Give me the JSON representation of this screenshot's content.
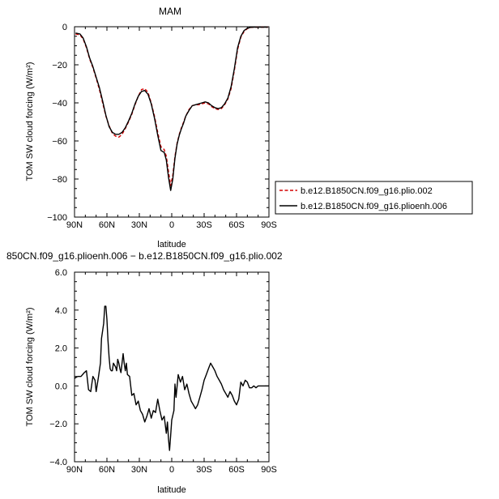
{
  "chart_data": [
    {
      "type": "line",
      "title": "MAM",
      "xlabel": "latitude",
      "ylabel": "TOM SW cloud forcing (W/m²)",
      "xlim": [
        90,
        -90
      ],
      "ylim": [
        -100,
        0
      ],
      "x_ticks": [
        90,
        60,
        30,
        0,
        -30,
        -60,
        -90
      ],
      "x_tick_labels": [
        "90N",
        "60N",
        "30N",
        "0",
        "30S",
        "60S",
        "90S"
      ],
      "y_ticks": [
        0,
        -20,
        -40,
        -60,
        -80,
        -100
      ],
      "y_tick_labels": [
        "0",
        "−20",
        "−40",
        "−60",
        "−80",
        "−100"
      ],
      "grid": false,
      "legend": "right",
      "series": [
        {
          "name": "b.e12.B1850CN.f09_g16.plio.002",
          "color": "#d40000",
          "dash": "dashed",
          "x": [
            89,
            85,
            82,
            79,
            76,
            73,
            70,
            67,
            64,
            61,
            58,
            55,
            52,
            49,
            46,
            43,
            40,
            37,
            34,
            31,
            28,
            25,
            22,
            19,
            16,
            13,
            10,
            7,
            5,
            3,
            1,
            -1,
            -3,
            -5,
            -7,
            -9,
            -11,
            -13,
            -16,
            -19,
            -22,
            -25,
            -28,
            -31,
            -34,
            -37,
            -40,
            -43,
            -46,
            -49,
            -52,
            -55,
            -58,
            -61,
            -64,
            -67,
            -70,
            -73,
            -76,
            -79,
            -82,
            -85,
            -89
          ],
          "y": [
            -3.8,
            -4.2,
            -6.5,
            -11,
            -17,
            -21.5,
            -27,
            -33,
            -40,
            -47,
            -52,
            -56,
            -57.5,
            -58,
            -56.5,
            -53.5,
            -50,
            -46,
            -41,
            -36.5,
            -33,
            -32.5,
            -34.5,
            -40,
            -47,
            -55.5,
            -63,
            -64.5,
            -68,
            -76,
            -83.5,
            -78,
            -68,
            -61,
            -56.5,
            -53,
            -50,
            -47,
            -43.5,
            -41.5,
            -41,
            -41,
            -40.5,
            -40,
            -40.5,
            -42,
            -43,
            -43.5,
            -43,
            -41,
            -38,
            -32.5,
            -23,
            -12,
            -5.5,
            -2.5,
            -1,
            -0.4,
            -0.2,
            -0.2,
            -0.2,
            -0.2,
            -0.2
          ]
        },
        {
          "name": "b.e12.B1850CN.f09_g16.plioenh.006",
          "color": "#000000",
          "dash": "solid",
          "x": [
            89,
            85,
            82,
            79,
            76,
            73,
            70,
            67,
            64,
            61,
            58,
            55,
            52,
            49,
            46,
            43,
            40,
            37,
            34,
            31,
            28,
            25,
            22,
            19,
            16,
            13,
            10,
            7,
            5,
            3,
            1,
            -1,
            -3,
            -5,
            -7,
            -9,
            -11,
            -13,
            -16,
            -19,
            -22,
            -25,
            -28,
            -31,
            -34,
            -37,
            -40,
            -43,
            -46,
            -49,
            -52,
            -55,
            -58,
            -61,
            -64,
            -67,
            -70,
            -73,
            -76,
            -79,
            -82,
            -85,
            -89
          ],
          "y": [
            -3.3,
            -3.8,
            -6,
            -10.5,
            -16.5,
            -21,
            -26.5,
            -32,
            -39,
            -46.5,
            -52.5,
            -55.5,
            -56.5,
            -56.5,
            -55.5,
            -53,
            -49.5,
            -45.5,
            -40.5,
            -36.5,
            -34,
            -33.5,
            -35.5,
            -40.5,
            -48,
            -57,
            -65,
            -66,
            -70,
            -79,
            -86,
            -80,
            -69,
            -61.5,
            -57,
            -53.5,
            -50.5,
            -47,
            -44,
            -41.5,
            -41,
            -40.5,
            -40,
            -39.5,
            -40,
            -41.5,
            -42.5,
            -43,
            -42.5,
            -40.5,
            -37.5,
            -31.5,
            -22,
            -11,
            -5,
            -2,
            -0.8,
            -0.3,
            -0.2,
            -0.2,
            -0.2,
            -0.2,
            -0.2
          ]
        }
      ]
    },
    {
      "type": "line",
      "title": "850CN.f09_g16.plioenh.006 − b.e12.B1850CN.f09_g16.plio.002",
      "xlabel": "latitude",
      "ylabel": "TOM SW cloud forcing (W/m²)",
      "xlim": [
        90,
        -90
      ],
      "ylim": [
        -4,
        6
      ],
      "x_ticks": [
        90,
        60,
        30,
        0,
        -30,
        -60,
        -90
      ],
      "x_tick_labels": [
        "90N",
        "60N",
        "30N",
        "0",
        "30S",
        "60S",
        "90S"
      ],
      "y_ticks": [
        6,
        4,
        2,
        0,
        -2,
        -4
      ],
      "y_tick_labels": [
        "6.0",
        "4.0",
        "2.0",
        "0.0",
        "−2.0",
        "−4.0"
      ],
      "grid": false,
      "series": [
        {
          "color": "#000000",
          "dash": "solid",
          "x": [
            90,
            87,
            84,
            81,
            79,
            77,
            75,
            73,
            71,
            70,
            68,
            66,
            65,
            63,
            62,
            61,
            60,
            59,
            58,
            57,
            56,
            55,
            54,
            52,
            51,
            50,
            49,
            48,
            47,
            45,
            44,
            43,
            42,
            41,
            39,
            37,
            35,
            33,
            31,
            29,
            27,
            25,
            23,
            21,
            19,
            17,
            15,
            13,
            11,
            9,
            7,
            5,
            4,
            3,
            2,
            1,
            0,
            -2,
            -3,
            -4,
            -6,
            -8,
            -10,
            -12,
            -14,
            -16,
            -18,
            -20,
            -22,
            -24,
            -26,
            -28,
            -30,
            -32,
            -34,
            -36,
            -38,
            -40,
            -42,
            -44,
            -46,
            -48,
            -50,
            -52,
            -54,
            -56,
            -58,
            -60,
            -62,
            -64,
            -66,
            -68,
            -70,
            -72,
            -74,
            -76,
            -78,
            -80,
            -83,
            -86,
            -90
          ],
          "y": [
            0.4,
            0.5,
            0.5,
            0.7,
            0.8,
            -0.2,
            -0.3,
            0.5,
            0.3,
            -0.3,
            0.4,
            1.2,
            2.5,
            3.3,
            4.2,
            4.2,
            3.5,
            2.4,
            1.5,
            0.9,
            0.8,
            0.8,
            1.2,
            1.0,
            0.8,
            1.4,
            1.2,
            0.9,
            0.7,
            1.7,
            1.2,
            0.8,
            1.2,
            0.6,
            0.5,
            -0.5,
            -0.4,
            -1.0,
            -0.8,
            -1.3,
            -1.5,
            -1.9,
            -1.6,
            -1.2,
            -1.7,
            -1.3,
            -1.4,
            -0.7,
            -1.3,
            -1.8,
            -1.6,
            -2.5,
            -1.9,
            -2.8,
            -3.4,
            -2.6,
            -1.8,
            -1.3,
            0.1,
            -0.6,
            0.6,
            0.2,
            0.5,
            -0.2,
            0.1,
            -0.4,
            -0.8,
            -1.0,
            -1.2,
            -1.0,
            -0.6,
            -0.2,
            0.3,
            0.6,
            0.9,
            1.2,
            1.0,
            0.8,
            0.5,
            0.3,
            0.1,
            -0.2,
            -0.4,
            -0.6,
            -0.3,
            -0.5,
            -0.8,
            -1.0,
            -0.7,
            0.2,
            0.0,
            0.3,
            0.2,
            -0.1,
            -0.1,
            0.0,
            -0.1,
            0.0,
            0.0,
            0.0,
            0.0
          ]
        }
      ]
    }
  ]
}
